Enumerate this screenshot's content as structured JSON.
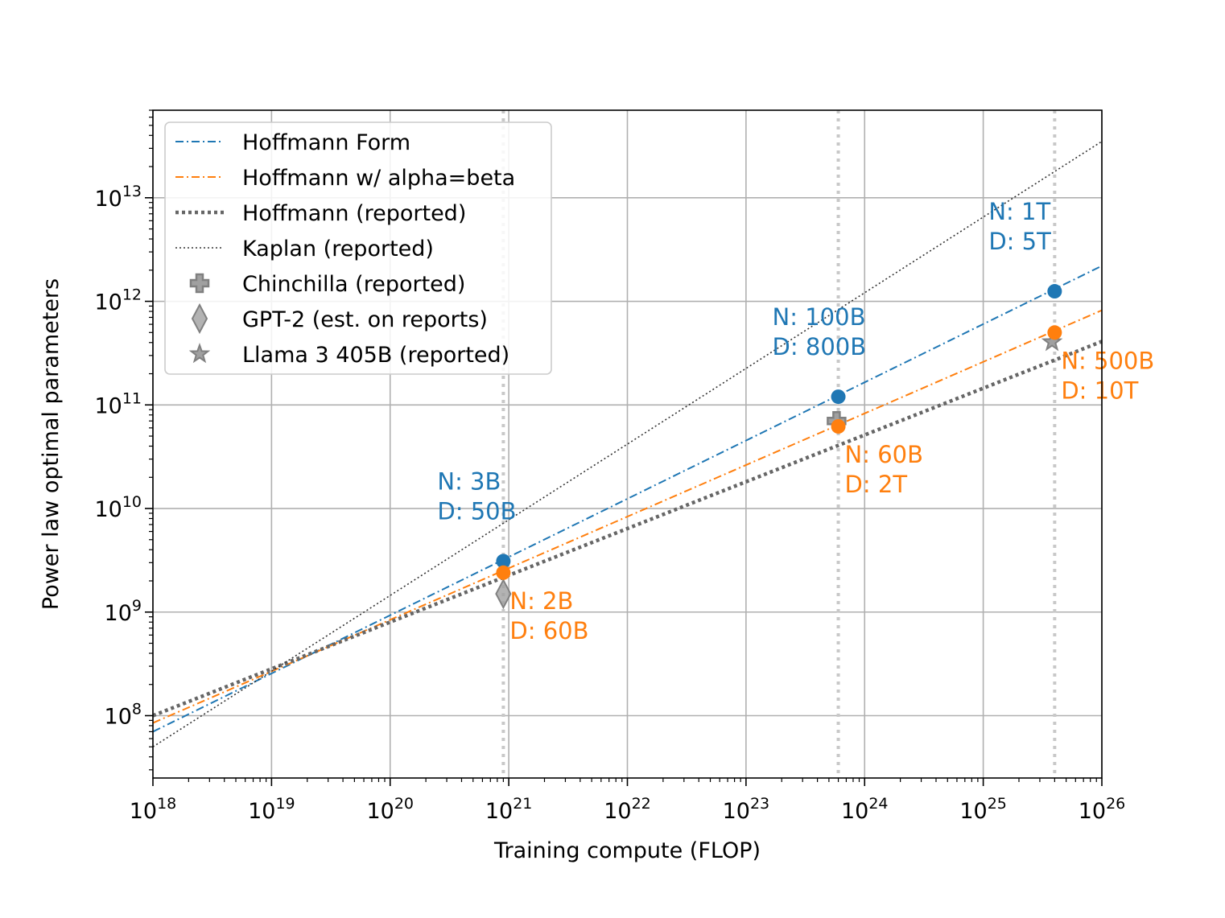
{
  "chart_data": {
    "type": "line",
    "xlabel": "Training compute (FLOP)",
    "ylabel": "Power law optimal parameters",
    "xscale": "log",
    "yscale": "log",
    "xlim": [
      1e+18,
      1e+26
    ],
    "ylim": [
      25000000.0,
      70000000000000.0
    ],
    "grid": true,
    "legend_position": "top-left",
    "x_ticks": [
      {
        "base": "10",
        "exp": "18"
      },
      {
        "base": "10",
        "exp": "19"
      },
      {
        "base": "10",
        "exp": "20"
      },
      {
        "base": "10",
        "exp": "21"
      },
      {
        "base": "10",
        "exp": "22"
      },
      {
        "base": "10",
        "exp": "23"
      },
      {
        "base": "10",
        "exp": "24"
      },
      {
        "base": "10",
        "exp": "25"
      },
      {
        "base": "10",
        "exp": "26"
      }
    ],
    "y_ticks": [
      {
        "base": "10",
        "exp": "8"
      },
      {
        "base": "10",
        "exp": "9"
      },
      {
        "base": "10",
        "exp": "10"
      },
      {
        "base": "10",
        "exp": "11"
      },
      {
        "base": "10",
        "exp": "12"
      },
      {
        "base": "10",
        "exp": "13"
      }
    ],
    "vlines": [
      9e+20,
      6e+23,
      4e+25
    ],
    "series": [
      {
        "name": "Hoffmann Form",
        "kind": "line",
        "color": "#1f77b4",
        "style": "dashdot",
        "x": [
          1e+18,
          1e+26
        ],
        "y": [
          70000000.0,
          2200000000000.0
        ]
      },
      {
        "name": "Hoffmann w/ alpha=beta",
        "kind": "line",
        "color": "#ff7f0e",
        "style": "dashdot",
        "x": [
          1e+18,
          1e+26
        ],
        "y": [
          85000000.0,
          820000000000.0
        ]
      },
      {
        "name": "Hoffmann (reported)",
        "kind": "line",
        "color": "#666666",
        "style": "dotted-thick",
        "x": [
          1e+18,
          1e+26
        ],
        "y": [
          100000000.0,
          410000000000.0
        ]
      },
      {
        "name": "Kaplan (reported)",
        "kind": "line",
        "color": "#333333",
        "style": "dotted-thin",
        "x": [
          1e+18,
          1e+26
        ],
        "y": [
          50000000.0,
          35000000000000.0
        ]
      },
      {
        "name": "Chinchilla (reported)",
        "kind": "marker",
        "marker": "plus",
        "color": "#888888",
        "x": [
          5.8e+23
        ],
        "y": [
          70000000000.0
        ]
      },
      {
        "name": "GPT-2 (est. on reports)",
        "kind": "marker",
        "marker": "diamond",
        "color": "#888888",
        "x": [
          9e+20
        ],
        "y": [
          1500000000.0
        ]
      },
      {
        "name": "Llama 3 405B (reported)",
        "kind": "marker",
        "marker": "star",
        "color": "#888888",
        "x": [
          3.8e+25
        ],
        "y": [
          405000000000.0
        ]
      }
    ],
    "points": [
      {
        "series": "Hoffmann Form",
        "color": "#1f77b4",
        "x": 9e+20,
        "y": 3100000000.0
      },
      {
        "series": "Hoffmann Form",
        "color": "#1f77b4",
        "x": 6e+23,
        "y": 120000000000.0
      },
      {
        "series": "Hoffmann Form",
        "color": "#1f77b4",
        "x": 4e+25,
        "y": 1250000000000.0
      },
      {
        "series": "Hoffmann w/ alpha=beta",
        "color": "#ff7f0e",
        "x": 9e+20,
        "y": 2400000000.0
      },
      {
        "series": "Hoffmann w/ alpha=beta",
        "color": "#ff7f0e",
        "x": 6e+23,
        "y": 62000000000.0
      },
      {
        "series": "Hoffmann w/ alpha=beta",
        "color": "#ff7f0e",
        "x": 4e+25,
        "y": 500000000000.0
      }
    ],
    "annotations": [
      {
        "color": "#1f77b4",
        "lines": [
          "N: 3B",
          "D: 50B"
        ],
        "anchor_x": 9e+20,
        "anchor_y": 3100000000.0,
        "placement": "above-left"
      },
      {
        "color": "#1f77b4",
        "lines": [
          "N: 100B",
          "D: 800B"
        ],
        "anchor_x": 6e+23,
        "anchor_y": 120000000000.0,
        "placement": "above-left"
      },
      {
        "color": "#1f77b4",
        "lines": [
          "N: 1T",
          "D: 5T"
        ],
        "anchor_x": 4e+25,
        "anchor_y": 1250000000000.0,
        "placement": "above-left"
      },
      {
        "color": "#ff7f0e",
        "lines": [
          "N: 2B",
          "D: 60B"
        ],
        "anchor_x": 9e+20,
        "anchor_y": 2400000000.0,
        "placement": "below-right"
      },
      {
        "color": "#ff7f0e",
        "lines": [
          "N: 60B",
          "D: 2T"
        ],
        "anchor_x": 6e+23,
        "anchor_y": 62000000000.0,
        "placement": "below-right"
      },
      {
        "color": "#ff7f0e",
        "lines": [
          "N: 500B",
          "D: 10T"
        ],
        "anchor_x": 4e+25,
        "anchor_y": 500000000000.0,
        "placement": "below-right"
      }
    ]
  }
}
